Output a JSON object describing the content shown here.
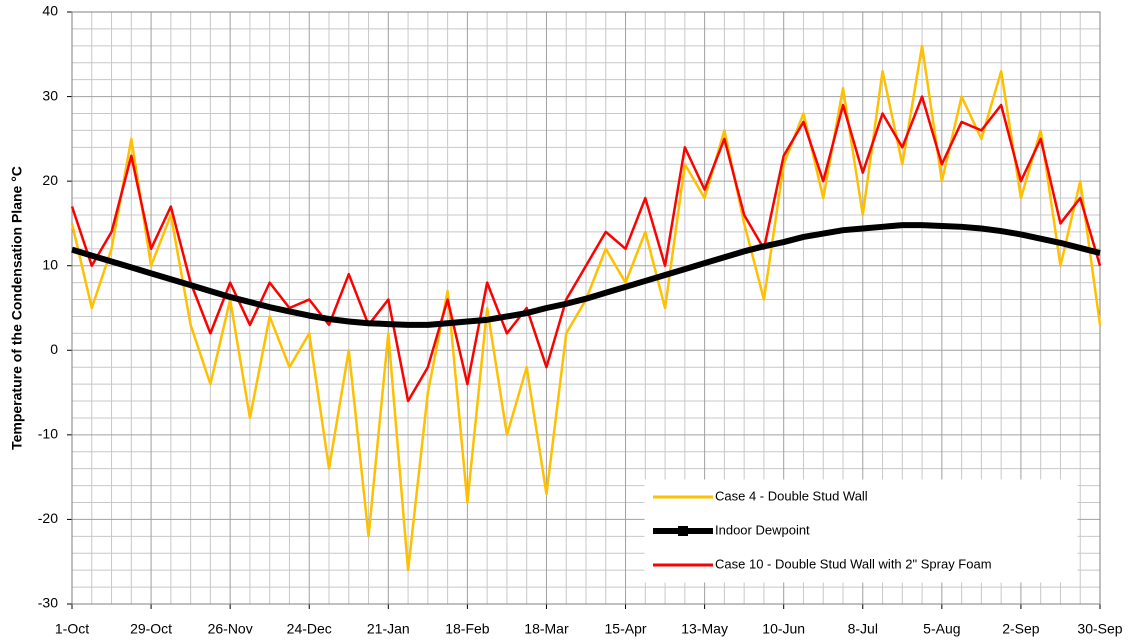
{
  "chart_data": {
    "type": "line",
    "y_label": "Temperature of the Condensation Plane °C",
    "x": [
      0,
      7,
      14,
      21,
      28,
      35,
      42,
      49,
      56,
      63,
      70,
      77,
      84,
      91,
      98,
      105,
      112,
      119,
      126,
      133,
      140,
      147,
      154,
      161,
      168,
      175,
      182,
      189,
      196,
      203,
      210,
      217,
      224,
      231,
      238,
      245,
      252,
      259,
      266,
      273,
      280,
      287,
      294,
      301,
      308,
      315,
      322,
      329,
      336,
      343,
      350,
      357,
      364
    ],
    "xlim": [
      0,
      364
    ],
    "xticks": [
      {
        "value": 0,
        "label": "1-Oct"
      },
      {
        "value": 28,
        "label": "29-Oct"
      },
      {
        "value": 56,
        "label": "26-Nov"
      },
      {
        "value": 84,
        "label": "24-Dec"
      },
      {
        "value": 112,
        "label": "21-Jan"
      },
      {
        "value": 140,
        "label": "18-Feb"
      },
      {
        "value": 168,
        "label": "18-Mar"
      },
      {
        "value": 196,
        "label": "15-Apr"
      },
      {
        "value": 224,
        "label": "13-May"
      },
      {
        "value": 252,
        "label": "10-Jun"
      },
      {
        "value": 280,
        "label": "8-Jul"
      },
      {
        "value": 308,
        "label": "5-Aug"
      },
      {
        "value": 336,
        "label": "2-Sep"
      },
      {
        "value": 364,
        "label": "30-Sep"
      }
    ],
    "ylim": [
      -30,
      40
    ],
    "yticks": [
      -30,
      -20,
      -10,
      0,
      10,
      20,
      30,
      40
    ],
    "grid": true,
    "legend": "bottom-right",
    "series": [
      {
        "name": "Case 4 - Double Stud Wall",
        "color": "#ffc000",
        "values": [
          15,
          5,
          12,
          25,
          10,
          16,
          3,
          -4,
          6,
          -8,
          4,
          -2,
          2,
          -14,
          0,
          -22,
          2,
          -26,
          -5,
          7,
          -18,
          5,
          -10,
          -2,
          -17,
          2,
          6,
          12,
          8,
          14,
          5,
          22,
          18,
          26,
          15,
          6,
          22,
          28,
          18,
          31,
          16,
          33,
          22,
          36,
          20,
          30,
          25,
          33,
          18,
          26,
          10,
          20,
          3
        ]
      },
      {
        "name": "Indoor Dewpoint",
        "color": "#000000",
        "values": [
          11.9,
          11.2,
          10.5,
          9.8,
          9.1,
          8.4,
          7.7,
          7.0,
          6.3,
          5.7,
          5.1,
          4.6,
          4.1,
          3.7,
          3.4,
          3.2,
          3.1,
          3.0,
          3.0,
          3.2,
          3.4,
          3.6,
          4.0,
          4.4,
          5.0,
          5.5,
          6.1,
          6.8,
          7.5,
          8.2,
          8.9,
          9.6,
          10.3,
          11.0,
          11.7,
          12.3,
          12.8,
          13.4,
          13.8,
          14.2,
          14.4,
          14.6,
          14.8,
          14.8,
          14.7,
          14.6,
          14.4,
          14.1,
          13.7,
          13.2,
          12.7,
          12.1,
          11.5
        ]
      },
      {
        "name": "Case 10 - Double Stud Wall with 2\" Spray Foam",
        "color": "#ff0000",
        "values": [
          17,
          10,
          14,
          23,
          12,
          17,
          8,
          2,
          8,
          3,
          8,
          5,
          6,
          3,
          9,
          3,
          6,
          -6,
          -2,
          6,
          -4,
          8,
          2,
          5,
          -2,
          6,
          10,
          14,
          12,
          18,
          10,
          24,
          19,
          25,
          16,
          12,
          23,
          27,
          20,
          29,
          21,
          28,
          24,
          30,
          22,
          27,
          26,
          29,
          20,
          25,
          15,
          18,
          10
        ]
      }
    ]
  }
}
